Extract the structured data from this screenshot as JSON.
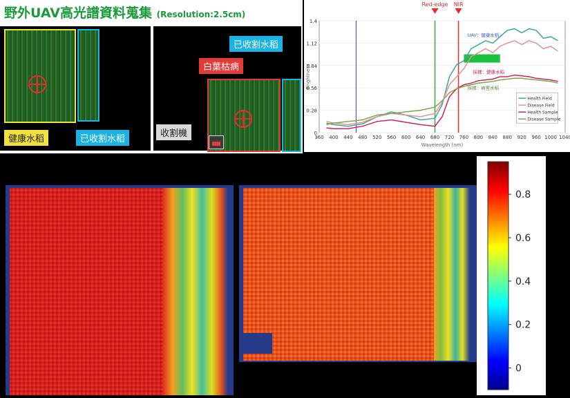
{
  "title": {
    "main": "野外UAV高光譜資料蒐集",
    "resolution": "(Resolution:2.5cm)"
  },
  "labels": {
    "healthy_rice": "健康水稻",
    "harvested_rice_1": "已收割水稻",
    "harvested_rice_2": "已收割水稻",
    "white_leaf_blight": "白葉枯病",
    "harvester": "收割機"
  },
  "colors": {
    "title_green": "#1a9a3a",
    "yellow_label": "#f2e33a",
    "cyan_label": "#19b3e6",
    "red_label": "#e53a3a",
    "grey_label": "#d9d9d9"
  },
  "chart_data": {
    "type": "line",
    "xlabel": "Wavelength (nm)",
    "ylabel": "Brightness",
    "xlim": [
      360,
      1040
    ],
    "ylim": [
      0,
      1.4
    ],
    "x_ticks": [
      360,
      400,
      440,
      480,
      520,
      560,
      600,
      640,
      680,
      720,
      760,
      800,
      840,
      880,
      920,
      960,
      1000,
      1040
    ],
    "y_ticks": [
      0,
      0.28,
      0.56,
      0.84,
      1.12,
      1.4
    ],
    "markers": [
      {
        "label": "Red-edge",
        "x": 680
      },
      {
        "label": "NIR",
        "x": 745
      }
    ],
    "annotations": [
      "UAV：健康水稻",
      "採樣：健康水稻",
      "採樣：病害水稻"
    ],
    "legend_position": "bottom-right",
    "series": [
      {
        "name": "Health Field",
        "color": "#3aa6a0",
        "x": [
          380,
          400,
          440,
          480,
          520,
          560,
          600,
          640,
          680,
          700,
          720,
          740,
          760,
          780,
          800,
          820,
          840,
          860,
          880,
          900,
          920,
          940,
          960,
          980,
          1000,
          1020
        ],
        "y": [
          0.12,
          0.1,
          0.08,
          0.11,
          0.2,
          0.26,
          0.22,
          0.16,
          0.18,
          0.35,
          0.7,
          0.85,
          0.9,
          1.05,
          1.1,
          1.15,
          1.12,
          1.2,
          1.28,
          1.3,
          1.25,
          1.3,
          1.28,
          1.18,
          1.2,
          1.15
        ]
      },
      {
        "name": "Disease Field",
        "color": "#e89090",
        "x": [
          380,
          400,
          440,
          480,
          520,
          560,
          600,
          640,
          680,
          700,
          720,
          740,
          760,
          780,
          800,
          820,
          840,
          860,
          880,
          900,
          920,
          940,
          960,
          980,
          1000,
          1020
        ],
        "y": [
          0.14,
          0.12,
          0.1,
          0.13,
          0.2,
          0.24,
          0.22,
          0.2,
          0.24,
          0.38,
          0.6,
          0.7,
          0.8,
          0.95,
          1.0,
          1.05,
          1.0,
          1.08,
          1.12,
          1.15,
          1.1,
          1.15,
          1.12,
          1.05,
          1.08,
          1.02
        ]
      },
      {
        "name": "Health Sample",
        "color": "#d02060",
        "x": [
          380,
          400,
          440,
          480,
          520,
          560,
          600,
          640,
          680,
          700,
          720,
          740,
          760,
          780,
          800,
          820,
          840,
          860,
          880,
          900,
          920,
          940,
          960,
          980,
          1000,
          1020
        ],
        "y": [
          0.06,
          0.05,
          0.05,
          0.08,
          0.14,
          0.16,
          0.13,
          0.1,
          0.08,
          0.2,
          0.45,
          0.55,
          0.6,
          0.62,
          0.65,
          0.66,
          0.67,
          0.7,
          0.7,
          0.72,
          0.71,
          0.7,
          0.68,
          0.67,
          0.66,
          0.64
        ]
      },
      {
        "name": "Disease Sample",
        "color": "#7aa84a",
        "x": [
          380,
          400,
          440,
          480,
          520,
          560,
          600,
          640,
          680,
          700,
          720,
          740,
          760,
          780,
          800,
          820,
          840,
          860,
          880,
          900,
          920,
          940,
          960,
          980,
          1000,
          1020
        ],
        "y": [
          0.1,
          0.12,
          0.14,
          0.16,
          0.22,
          0.24,
          0.26,
          0.28,
          0.32,
          0.4,
          0.5,
          0.55,
          0.58,
          0.6,
          0.62,
          0.63,
          0.64,
          0.66,
          0.67,
          0.68,
          0.68,
          0.67,
          0.66,
          0.65,
          0.64,
          0.62
        ]
      }
    ]
  },
  "colorbar": {
    "ticks": [
      "0.8",
      "0.6",
      "0.4",
      "0.2",
      "0"
    ],
    "tick_values": [
      0.8,
      0.6,
      0.4,
      0.2,
      0
    ],
    "min": -0.1,
    "max": 0.95
  }
}
